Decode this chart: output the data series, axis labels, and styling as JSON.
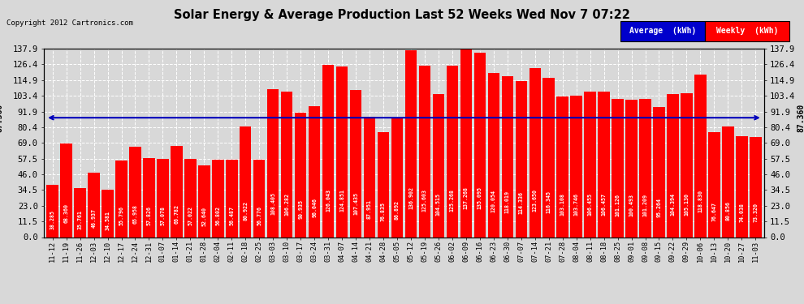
{
  "title": "Solar Energy & Average Production Last 52 Weeks Wed Nov 7 07:22",
  "copyright": "Copyright 2012 Cartronics.com",
  "average_value": 87.36,
  "yticks": [
    0.0,
    11.5,
    23.0,
    34.5,
    46.0,
    57.5,
    69.0,
    80.4,
    91.9,
    103.4,
    114.9,
    126.4,
    137.9
  ],
  "bar_color": "#ff0000",
  "avg_line_color": "#0000bb",
  "background_color": "#d8d8d8",
  "grid_color": "#ffffff",
  "legend_avg_bg": "#0000cc",
  "legend_weekly_bg": "#ff0000",
  "dates": [
    "11-12",
    "11-19",
    "11-26",
    "12-03",
    "12-10",
    "12-17",
    "12-24",
    "12-31",
    "01-07",
    "01-14",
    "01-21",
    "01-28",
    "02-04",
    "02-11",
    "02-18",
    "02-25",
    "03-03",
    "03-10",
    "03-17",
    "03-24",
    "03-31",
    "04-07",
    "04-14",
    "04-21",
    "04-28",
    "05-05",
    "05-12",
    "05-19",
    "05-26",
    "06-02",
    "06-09",
    "06-16",
    "06-23",
    "06-30",
    "07-07",
    "07-14",
    "07-21",
    "07-28",
    "08-04",
    "08-11",
    "08-18",
    "08-25",
    "09-01",
    "09-08",
    "09-15",
    "09-22",
    "09-29",
    "10-06",
    "10-13",
    "10-20",
    "10-27",
    "11-03"
  ],
  "values": [
    38.285,
    68.36,
    35.761,
    46.937,
    34.581,
    55.796,
    65.958,
    57.826,
    57.078,
    66.782,
    57.022,
    52.64,
    56.802,
    56.487,
    80.922,
    56.776,
    108.405,
    106.282,
    90.935,
    96.046,
    126.043,
    124.851,
    107.435,
    87.951,
    76.835,
    86.892,
    136.902,
    125.603,
    104.515,
    125.268,
    137.268,
    135.095,
    120.054,
    118.019,
    114.336,
    123.65,
    116.345,
    103.108,
    103.746,
    106.455,
    106.457,
    101.126,
    100.493,
    101.209,
    95.264,
    104.394,
    105.13,
    118.83,
    76.647,
    80.856,
    74.038,
    73.32
  ]
}
